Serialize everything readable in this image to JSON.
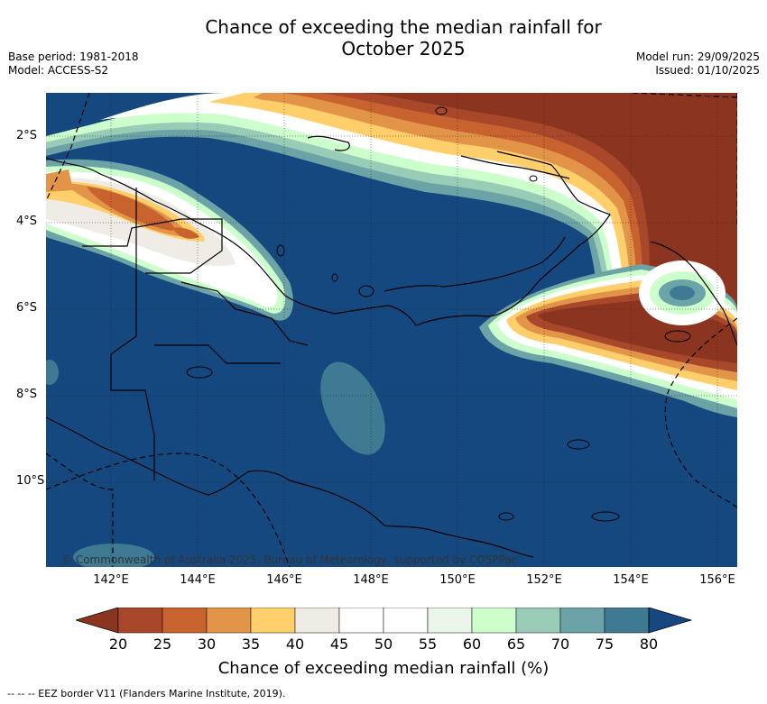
{
  "title_line1": "Chance of exceeding the median rainfall for",
  "title_line2": "October 2025",
  "base_period": "Base period: 1981-2018",
  "model": "Model: ACCESS-S2",
  "model_run": "Model run: 29/09/2025",
  "issued": "Issued: 01/10/2025",
  "lon_labels": [
    "142°E",
    "144°E",
    "146°E",
    "148°E",
    "150°E",
    "152°E",
    "154°E",
    "156°E"
  ],
  "lat_labels": [
    "2°S",
    "4°S",
    "6°S",
    "8°S",
    "10°S"
  ],
  "copyright": "© Commonwealth of Australia 2025, Bureau of Meteorology, supported by COSPPac",
  "colorbar": {
    "ticks": [
      "20",
      "25",
      "30",
      "35",
      "40",
      "45",
      "50",
      "55",
      "60",
      "65",
      "70",
      "75",
      "80"
    ],
    "colors": [
      "#8b3520",
      "#a9472a",
      "#c8632f",
      "#e29548",
      "#ffcf6b",
      "#efebe5",
      "#ffffff",
      "#ffffff",
      "#eaf6e9",
      "#ccffcc",
      "#99ccb6",
      "#6ca3a6",
      "#3f7a93",
      "#15487f"
    ],
    "title": "Chance of exceeding median rainfall (%)"
  },
  "footnote": "-- -- -- EEZ border V11 (Flanders Marine Institute, 2019).",
  "colors": {
    "high": "#15487f",
    "low": "#8b3520"
  }
}
